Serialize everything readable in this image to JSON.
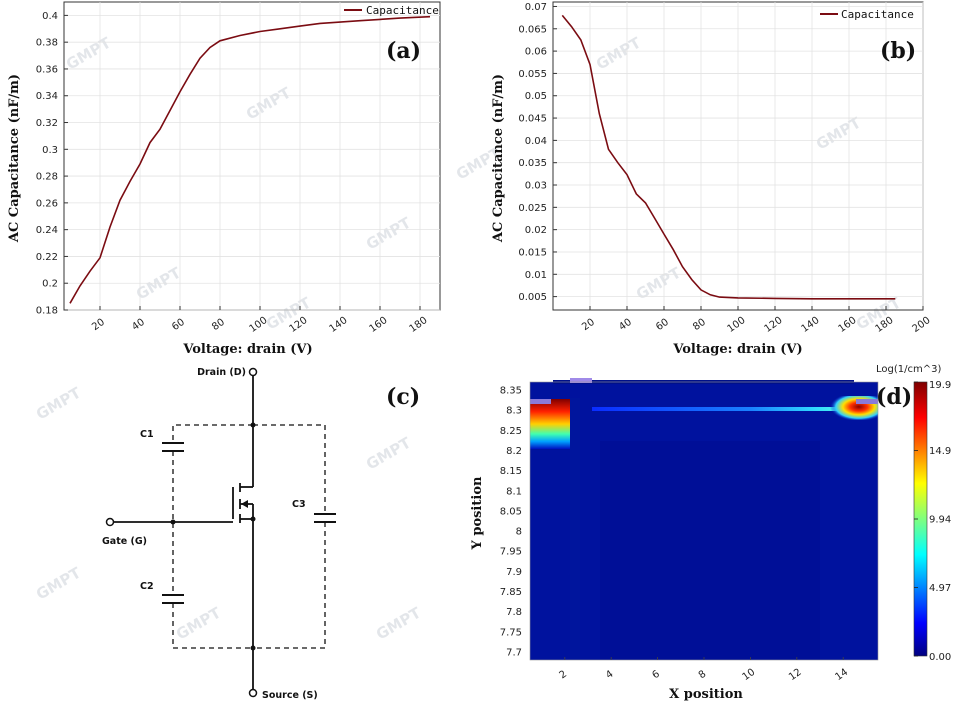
{
  "chart_data": [
    {
      "panel": "(a)",
      "type": "line",
      "xlabel": "Voltage: drain (V)",
      "ylabel": "AC Capacitance (nF/m)",
      "xlim": [
        2,
        190
      ],
      "ylim": [
        0.18,
        0.41
      ],
      "xticks": [
        20,
        40,
        60,
        80,
        100,
        120,
        140,
        160,
        180
      ],
      "yticks": [
        0.18,
        0.2,
        0.22,
        0.24,
        0.26,
        0.28,
        0.3,
        0.32,
        0.34,
        0.36,
        0.38,
        0.4
      ],
      "legend": "top-right",
      "series": [
        {
          "name": "Capacitance",
          "color": "#7b0c12",
          "x": [
            5,
            10,
            15,
            20,
            25,
            30,
            35,
            40,
            45,
            50,
            55,
            60,
            65,
            70,
            75,
            80,
            90,
            100,
            110,
            120,
            130,
            140,
            150,
            160,
            170,
            185
          ],
          "y": [
            0.185,
            0.198,
            0.209,
            0.219,
            0.242,
            0.262,
            0.276,
            0.289,
            0.305,
            0.315,
            0.329,
            0.343,
            0.356,
            0.368,
            0.376,
            0.381,
            0.385,
            0.388,
            0.39,
            0.392,
            0.394,
            0.395,
            0.396,
            0.397,
            0.398,
            0.399
          ]
        }
      ]
    },
    {
      "panel": "(b)",
      "type": "line",
      "xlabel": "Voltage: drain (V)",
      "ylabel": "AC Capacitance (nF/m)",
      "xlim": [
        0,
        200
      ],
      "ylim": [
        0.002,
        0.071
      ],
      "xticks": [
        20,
        40,
        60,
        80,
        100,
        120,
        140,
        160,
        180,
        200
      ],
      "yticks": [
        0.005,
        0.01,
        0.015,
        0.02,
        0.025,
        0.03,
        0.035,
        0.04,
        0.045,
        0.05,
        0.055,
        0.06,
        0.065,
        0.07
      ],
      "legend": "top-right",
      "series": [
        {
          "name": "Capacitance",
          "color": "#7b0c12",
          "x": [
            5,
            10,
            15,
            20,
            25,
            30,
            35,
            40,
            45,
            50,
            55,
            60,
            65,
            70,
            75,
            80,
            85,
            90,
            100,
            120,
            140,
            160,
            185
          ],
          "y": [
            0.068,
            0.0655,
            0.0625,
            0.057,
            0.046,
            0.038,
            0.035,
            0.0323,
            0.028,
            0.026,
            0.0225,
            0.019,
            0.0155,
            0.0117,
            0.0088,
            0.0065,
            0.0054,
            0.0049,
            0.0047,
            0.0046,
            0.0045,
            0.0045,
            0.0045
          ]
        }
      ]
    },
    {
      "panel": "(d)",
      "type": "heatmap",
      "xlabel": "X position",
      "ylabel": "Y position",
      "xlim": [
        0.5,
        15.5
      ],
      "ylim": [
        7.68,
        8.37
      ],
      "xticks": [
        2,
        4,
        6,
        8,
        10,
        12,
        14
      ],
      "yticks": [
        7.7,
        7.75,
        7.8,
        7.85,
        7.9,
        7.95,
        8,
        8.05,
        8.1,
        8.15,
        8.2,
        8.25,
        8.3,
        8.35
      ],
      "colorbar_title": "Log(1/cm^3)",
      "colorbar_ticks": [
        "19.9",
        "14.9",
        "9.94",
        "4.97",
        "0.00"
      ]
    }
  ],
  "panel_labels": {
    "a": "(a)",
    "b": "(b)",
    "c": "(c)",
    "d": "(d)"
  },
  "circuit": {
    "drain": "Drain (D)",
    "gate": "Gate (G)",
    "source": "Source (S)",
    "c1": "C1",
    "c2": "C2",
    "c3": "C3"
  },
  "watermark": "GMPT",
  "colors": {
    "curve": "#7b0c12",
    "axis": "#333333",
    "grid": "#e3e3e3"
  }
}
